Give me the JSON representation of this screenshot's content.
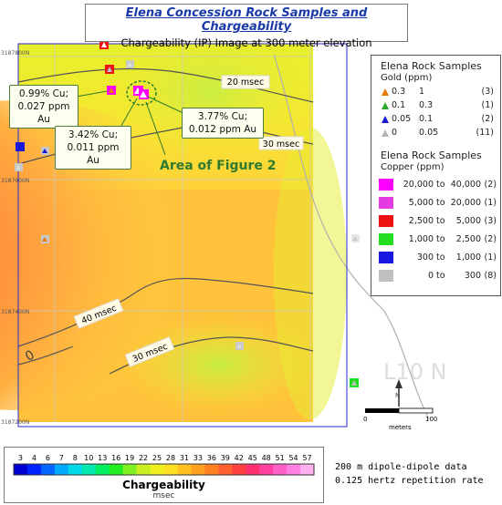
{
  "title": "Elena Concession Rock Samples and Chargeability",
  "subtitle": "Chargeability (IP) Image at 300 meter elevation",
  "map_labels": {
    "northing_top": "3187800N",
    "northing_mid": "3187600N",
    "northing_low": "3187400N",
    "northing_bottom": "3187200N",
    "area_label": "Area of Figure 2",
    "line_label": "L10 N",
    "north_arrow": "N",
    "scale_left": "0",
    "scale_right": "100",
    "scale_unit": "meters",
    "axis_zero": "0"
  },
  "contour_labels": [
    "20 msec",
    "30 msec",
    "40 msec",
    "30 msec"
  ],
  "callouts": [
    {
      "line1": "0.99% Cu;",
      "line2": "0.027 ppm Au"
    },
    {
      "line1": "3.42% Cu;",
      "line2": "0.011 ppm Au"
    },
    {
      "line1": "3.77% Cu;",
      "line2": "0.012 ppm Au"
    }
  ],
  "legend": {
    "title": "Elena Rock Samples",
    "gold_header": "Gold (ppm)",
    "gold": [
      {
        "from": "0.3",
        "to": "1",
        "count": "(3)",
        "color": "#e87a00"
      },
      {
        "from": "0.1",
        "to": "0.3",
        "count": "(1)",
        "color": "#2aa82a"
      },
      {
        "from": "0.05",
        "to": "0.1",
        "count": "(2)",
        "color": "#1a1ad0"
      },
      {
        "from": "0",
        "to": "0.05",
        "count": "(11)",
        "color": "#b4b4b4"
      }
    ],
    "copper_title": "Elena Rock Samples",
    "copper_header": "Copper (ppm)",
    "copper": [
      {
        "from": "20,000",
        "to": "40,000",
        "count": "(2)",
        "color": "#ff00ff"
      },
      {
        "from": "5,000",
        "to": "20,000",
        "count": "(1)",
        "color": "#e23ce2"
      },
      {
        "from": "2,500",
        "to": "5,000",
        "count": "(3)",
        "color": "#ee1111"
      },
      {
        "from": "1,000",
        "to": "2,500",
        "count": "(2)",
        "color": "#22dd22"
      },
      {
        "from": "300",
        "to": "1,000",
        "count": "(1)",
        "color": "#1818e0"
      },
      {
        "from": "0",
        "to": "300",
        "count": "(8)",
        "color": "#c0c0c0"
      }
    ]
  },
  "colorbar": {
    "title": "Chargeability",
    "unit": "msec",
    "ticks": [
      "3",
      "4",
      "6",
      "7",
      "8",
      "10",
      "13",
      "16",
      "19",
      "22",
      "25",
      "28",
      "31",
      "33",
      "36",
      "39",
      "42",
      "45",
      "48",
      "51",
      "54",
      "57"
    ],
    "colors": [
      "#0000d0",
      "#0022ff",
      "#0066ff",
      "#00aaff",
      "#00d8e8",
      "#00e8b0",
      "#00ee60",
      "#20ee20",
      "#80f020",
      "#c8f020",
      "#f0f020",
      "#ffe020",
      "#ffc020",
      "#ffa020",
      "#ff8020",
      "#ff6030",
      "#ff4040",
      "#ff3070",
      "#ff40a0",
      "#ff60c8",
      "#ff80e0",
      "#ffb0f0"
    ]
  },
  "notes": [
    "200 m dipole-dipole data",
    "0.125 hertz repetition rate"
  ]
}
